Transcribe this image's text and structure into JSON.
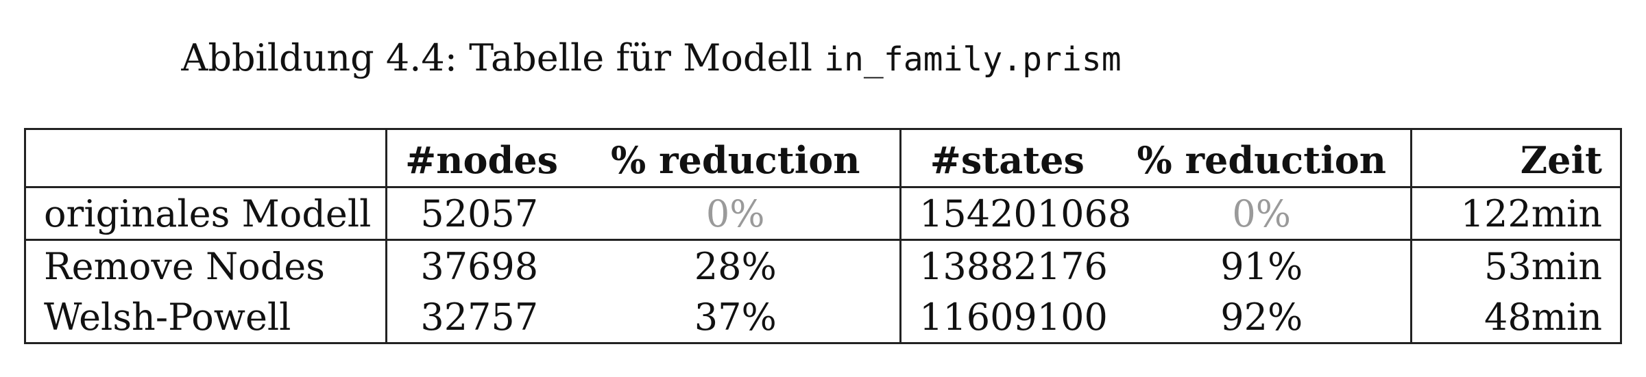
{
  "caption": {
    "prefix": "Abbildung 4.4: Tabelle für Modell ",
    "filename": "in_family.prism"
  },
  "table": {
    "headers": [
      "",
      "#nodes",
      "% reduction",
      "#states",
      "% reduction",
      "Zeit"
    ],
    "rows": [
      {
        "label": "originales Modell",
        "nodes": "52057",
        "nodes_reduction": "0%",
        "states": "154201068",
        "states_reduction": "0%",
        "time": "122min"
      },
      {
        "label": "Remove Nodes",
        "nodes": "37698",
        "nodes_reduction": "28%",
        "states": "13882176",
        "states_reduction": "91%",
        "time": "53min"
      },
      {
        "label": "Welsh-Powell",
        "nodes": "32757",
        "nodes_reduction": "37%",
        "states": "11609100",
        "states_reduction": "92%",
        "time": "48min"
      }
    ],
    "colors": {
      "baseline_reduction": "#9a9a9a",
      "rule": "#222222"
    }
  }
}
